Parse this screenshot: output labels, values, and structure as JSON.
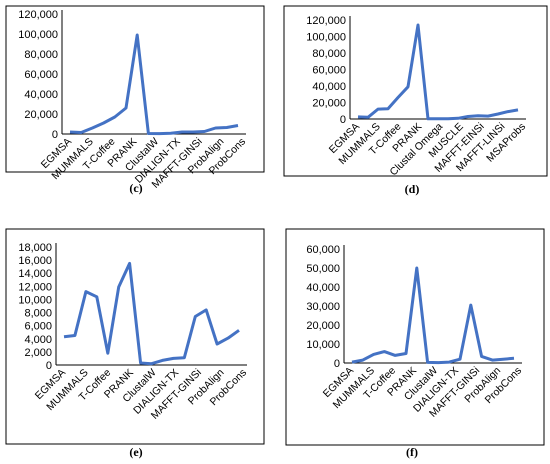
{
  "line_color": "#4472C4",
  "chart_data": [
    {
      "type": "line",
      "caption": "(c)",
      "ylim": [
        0,
        120000
      ],
      "yticks": [
        "0",
        "20,000",
        "40,000",
        "60,000",
        "80,000",
        "100,000",
        "120,000"
      ],
      "labeled_categories": [
        "EGMSA",
        "MUMMALS",
        "T-Coffee",
        "PRANK",
        "ClustalW",
        "DIALIGN-TX",
        "MAFFT-GINSi",
        "ProbAlign",
        "ProbCons"
      ],
      "values": [
        2000,
        1500,
        6000,
        11000,
        17000,
        26000,
        99000,
        500,
        400,
        700,
        2000,
        2000,
        2500,
        6000,
        6500,
        8500
      ]
    },
    {
      "type": "line",
      "caption": "(d)",
      "ylim": [
        0,
        120000
      ],
      "yticks": [
        "0",
        "20,000",
        "40,000",
        "60,000",
        "80,000",
        "100,000",
        "120,000"
      ],
      "labeled_categories": [
        "EGMSA",
        "MUMMALS",
        "T-Coffee",
        "PRANK",
        "Clustal Omega",
        "MUSCLE",
        "MAFFT-EINSi",
        "MAFFT-LINSi",
        "MSAProbs"
      ],
      "values": [
        2500,
        2000,
        12000,
        12500,
        26000,
        39000,
        114000,
        200,
        300,
        200,
        800,
        3000,
        4000,
        3500,
        6000,
        9000,
        11000
      ]
    },
    {
      "type": "line",
      "caption": "(e)",
      "ylim": [
        0,
        18000
      ],
      "yticks": [
        "0",
        "2,000",
        "4,000",
        "6,000",
        "8,000",
        "10,000",
        "12,000",
        "14,000",
        "16,000",
        "18,000"
      ],
      "labeled_categories": [
        "EGMSA",
        "MUMMALS",
        "T-Coffee",
        "PRANK",
        "ClustalW",
        "DIALIGN-TX",
        "MAFFT-GINSi",
        "ProbAlign",
        "ProbCons"
      ],
      "values": [
        4300,
        4500,
        11200,
        10400,
        1800,
        11900,
        15500,
        300,
        200,
        700,
        1000,
        1100,
        7400,
        8400,
        3200,
        4100,
        5300
      ]
    },
    {
      "type": "line",
      "caption": "(f)",
      "ylim": [
        0,
        60000
      ],
      "yticks": [
        "0",
        "10,000",
        "20,000",
        "30,000",
        "40,000",
        "50,000",
        "60,000"
      ],
      "labeled_categories": [
        "EGMSA",
        "MUMMALS",
        "T-Coffee",
        "PRANK",
        "ClustalW",
        "DIALIGN-TX",
        "MAFFT-GINSi",
        "ProbAlign",
        "ProbCons"
      ],
      "values": [
        500,
        1500,
        4500,
        6000,
        4000,
        5000,
        50000,
        300,
        200,
        500,
        2000,
        30500,
        3500,
        1500,
        2000,
        2500
      ]
    }
  ]
}
